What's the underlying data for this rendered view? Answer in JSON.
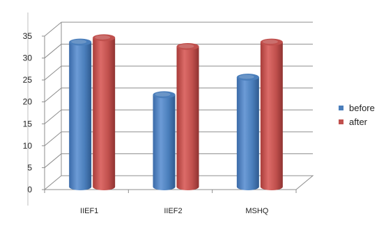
{
  "chart_data": {
    "type": "bar",
    "categories": [
      "IIEF1",
      "IIEF2",
      "MSHQ"
    ],
    "series": [
      {
        "name": "before",
        "values": [
          33,
          21,
          25
        ],
        "color": "#4a7ebb"
      },
      {
        "name": "after",
        "values": [
          34,
          32,
          33
        ],
        "color": "#c0504d"
      }
    ],
    "ylim": [
      0,
      35
    ],
    "yticks": [
      "0",
      "5",
      "10",
      "15",
      "20",
      "25",
      "30",
      "35"
    ],
    "grid": true,
    "legend_position": "right",
    "bar_style": "3d-cylinder"
  }
}
